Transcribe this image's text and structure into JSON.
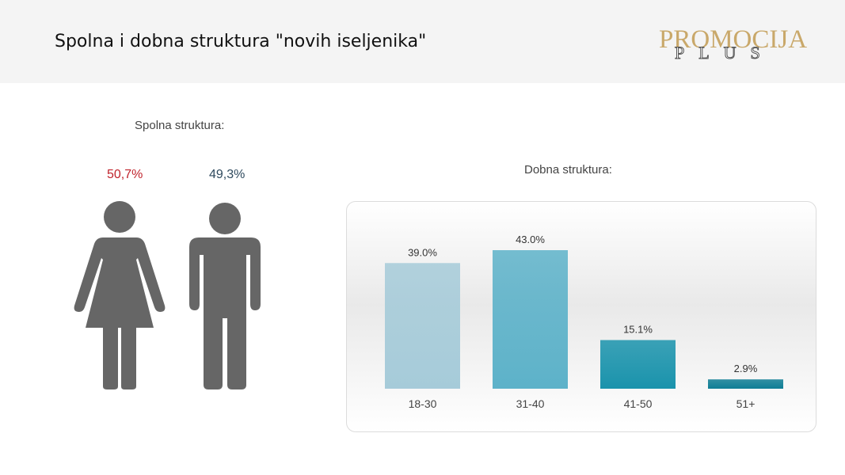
{
  "header": {
    "title": "Spolna i dobna struktura \"novih iseljenika\"",
    "logo_top": "PROMOCIJA",
    "logo_bottom": "PLUS"
  },
  "gender": {
    "section_title": "Spolna struktura:",
    "female": {
      "label": "50,7%",
      "color": "#c0232c"
    },
    "male": {
      "label": "49,3%",
      "color": "#2f4a5e"
    },
    "icon_color": "#666666"
  },
  "colors": {
    "bar_colors": [
      "#a6cbd9",
      "#5db2c9",
      "#1a93ac",
      "#0f7e95"
    ]
  },
  "chart_data": {
    "type": "bar",
    "title": "Dobna struktura:",
    "categories": [
      "18-30",
      "31-40",
      "41-50",
      "51+"
    ],
    "values": [
      39.0,
      43.0,
      15.1,
      2.9
    ],
    "value_labels": [
      "39.0%",
      "43.0%",
      "15.1%",
      "2.9%"
    ],
    "ylim": [
      0,
      43
    ],
    "grid": false
  }
}
